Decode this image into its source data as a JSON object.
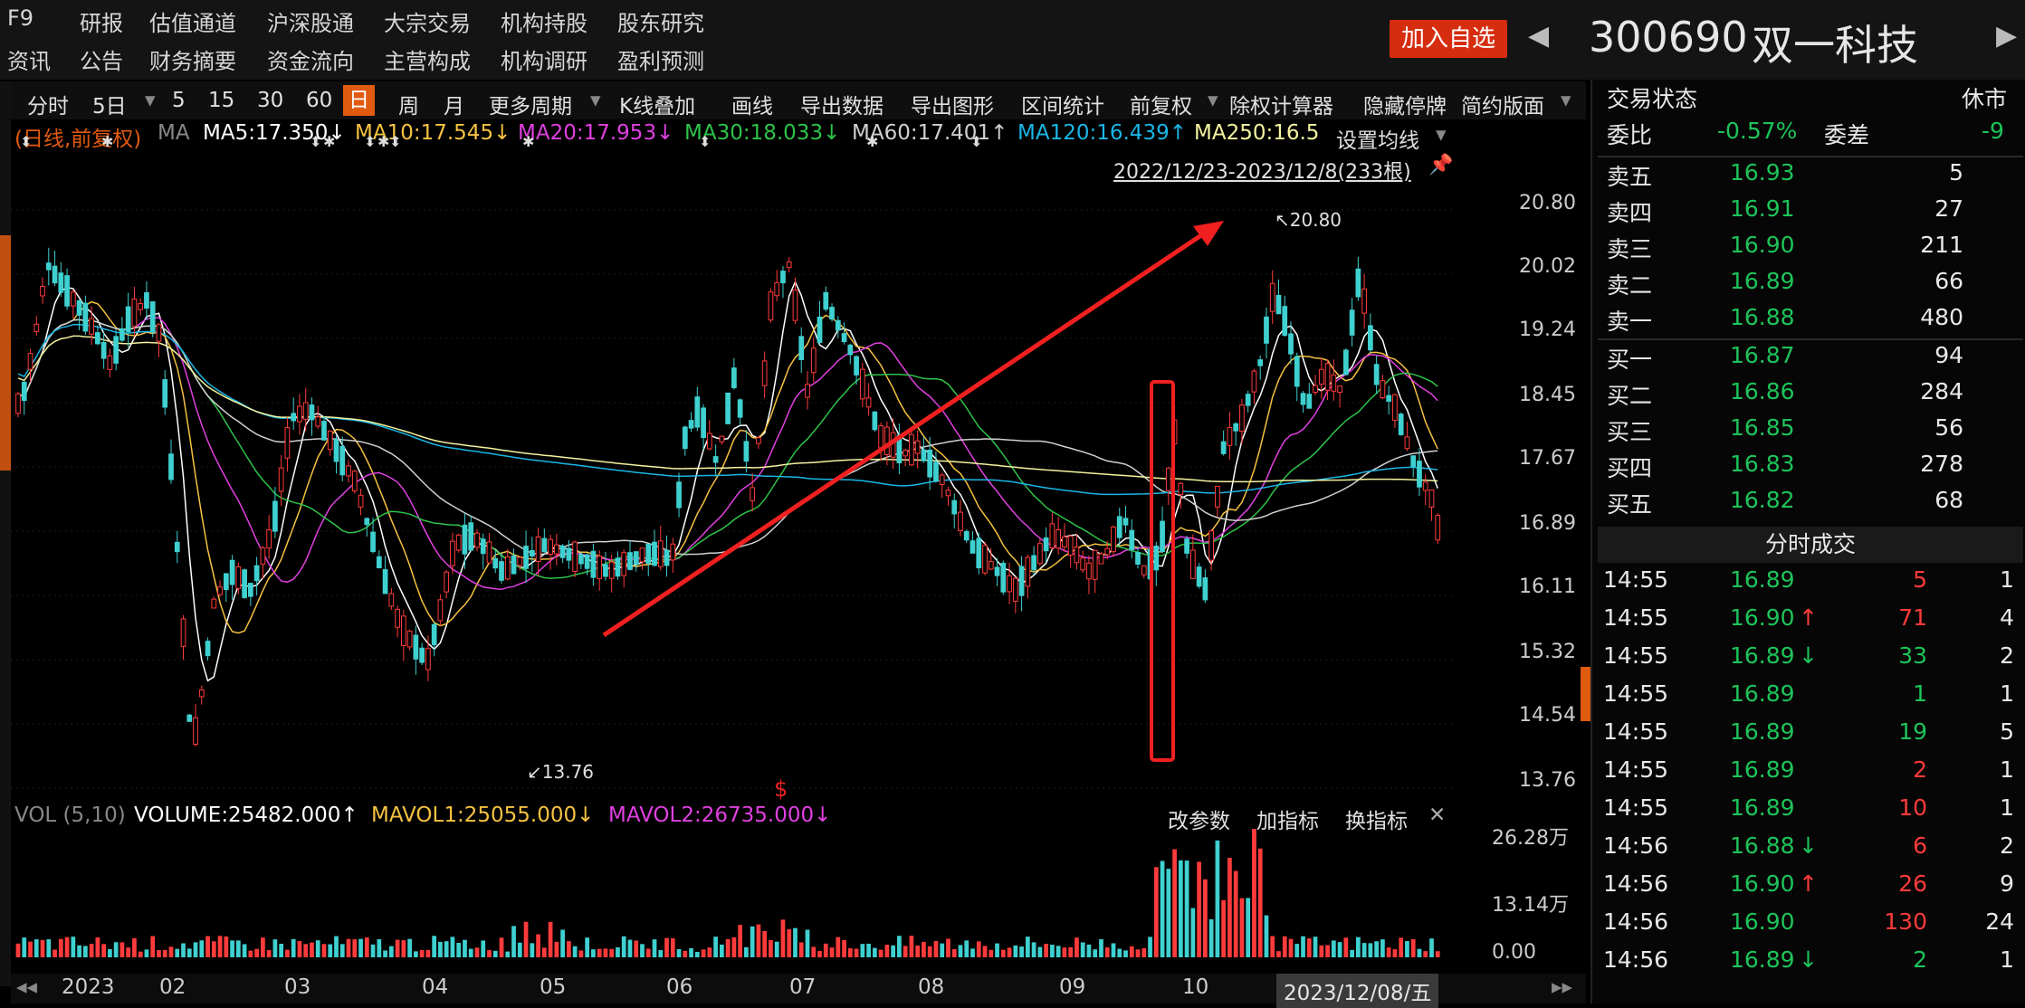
{
  "top_nav": {
    "row1": [
      "F9",
      "研报",
      "估值通道",
      "沪深股通",
      "大宗交易",
      "机构持股",
      "股东研究"
    ],
    "row2": [
      "资讯",
      "公告",
      "财务摘要",
      "资金流向",
      "主营构成",
      "机构调研",
      "盈利预测"
    ]
  },
  "header": {
    "add_watchlist": "加入自选",
    "prev_arrow": "◀",
    "next_arrow": "▶",
    "stock_code": "300690",
    "stock_name": "双一科技"
  },
  "toolbar": {
    "items": [
      "分时",
      "5日",
      "5",
      "15",
      "30",
      "60",
      "日",
      "周",
      "月",
      "更多周期",
      "K线叠加",
      "画线",
      "导出数据",
      "导出图形",
      "区间统计",
      "前复权",
      "除权计算器",
      "隐藏停牌",
      "简约版面"
    ],
    "active": "日"
  },
  "ma_legend": {
    "mode": "(日线,前复权)",
    "label": "MA",
    "ma5": "MA5:17.350↓",
    "ma10": "MA10:17.545↓",
    "ma20": "MA20:17.953↓",
    "ma30": "MA30:18.033↓",
    "ma60": "MA60:17.401↑",
    "ma120": "MA120:16.439↑",
    "ma250": "MA250:16.5",
    "settings": "设置均线",
    "range": "2022/12/23-2023/12/8(233根)",
    "colors": {
      "ma5": "#ffffff",
      "ma10": "#f5c242",
      "ma20": "#e040e0",
      "ma30": "#2fc24a",
      "ma60": "#d0d0d0",
      "ma120": "#1ab6e6",
      "ma250": "#f3f3a0"
    }
  },
  "price_axis": [
    "20.80",
    "20.02",
    "19.24",
    "18.45",
    "17.67",
    "16.89",
    "16.11",
    "15.32",
    "14.54",
    "13.76"
  ],
  "annotations": {
    "high": "20.80",
    "low": "13.76",
    "high_prefix": "↖",
    "low_prefix": "↙"
  },
  "volume_legend": {
    "label": "VOL (5,10)",
    "volume": "VOLUME:25482.000↑",
    "mavol1": "MAVOL1:25055.000↓",
    "mavol2": "MAVOL2:26735.000↓",
    "actions": [
      "改参数",
      "加指标",
      "换指标"
    ],
    "axis": [
      "26.28万",
      "13.14万",
      "0.00"
    ]
  },
  "time_axis": [
    "2023",
    "02",
    "03",
    "04",
    "05",
    "06",
    "07",
    "08",
    "09",
    "10",
    "2023/12/08/五"
  ],
  "status": {
    "label": "交易状态",
    "value": "休市"
  },
  "ratio": {
    "label1": "委比",
    "value1": "-0.57%",
    "label2": "委差",
    "value2": "-9"
  },
  "asks": [
    {
      "label": "卖五",
      "price": "16.93",
      "volume": "5"
    },
    {
      "label": "卖四",
      "price": "16.91",
      "volume": "27"
    },
    {
      "label": "卖三",
      "price": "16.90",
      "volume": "211"
    },
    {
      "label": "卖二",
      "price": "16.89",
      "volume": "66"
    },
    {
      "label": "卖一",
      "price": "16.88",
      "volume": "480"
    }
  ],
  "bids": [
    {
      "label": "买一",
      "price": "16.87",
      "volume": "94"
    },
    {
      "label": "买二",
      "price": "16.86",
      "volume": "284"
    },
    {
      "label": "买三",
      "price": "16.85",
      "volume": "56"
    },
    {
      "label": "买四",
      "price": "16.83",
      "volume": "278"
    },
    {
      "label": "买五",
      "price": "16.82",
      "volume": "68"
    }
  ],
  "trades_title": "分时成交",
  "trades": [
    {
      "time": "14:55",
      "price": "16.89",
      "arrow": "",
      "volume": "5",
      "vcolor": "red",
      "count": "1"
    },
    {
      "time": "14:55",
      "price": "16.90",
      "arrow": "↑",
      "volume": "71",
      "vcolor": "red",
      "count": "4"
    },
    {
      "time": "14:55",
      "price": "16.89",
      "arrow": "↓",
      "volume": "33",
      "vcolor": "green",
      "count": "2"
    },
    {
      "time": "14:55",
      "price": "16.89",
      "arrow": "",
      "volume": "1",
      "vcolor": "green",
      "count": "1"
    },
    {
      "time": "14:55",
      "price": "16.89",
      "arrow": "",
      "volume": "19",
      "vcolor": "green",
      "count": "5"
    },
    {
      "time": "14:55",
      "price": "16.89",
      "arrow": "",
      "volume": "2",
      "vcolor": "red",
      "count": "1"
    },
    {
      "time": "14:55",
      "price": "16.89",
      "arrow": "",
      "volume": "10",
      "vcolor": "red",
      "count": "1"
    },
    {
      "time": "14:56",
      "price": "16.88",
      "arrow": "↓",
      "volume": "6",
      "vcolor": "red",
      "count": "2"
    },
    {
      "time": "14:56",
      "price": "16.90",
      "arrow": "↑",
      "volume": "26",
      "vcolor": "red",
      "count": "9"
    },
    {
      "time": "14:56",
      "price": "16.90",
      "arrow": "",
      "volume": "130",
      "vcolor": "red",
      "count": "24"
    },
    {
      "time": "14:56",
      "price": "16.89",
      "arrow": "↓",
      "volume": "2",
      "vcolor": "green",
      "count": "1"
    }
  ]
}
